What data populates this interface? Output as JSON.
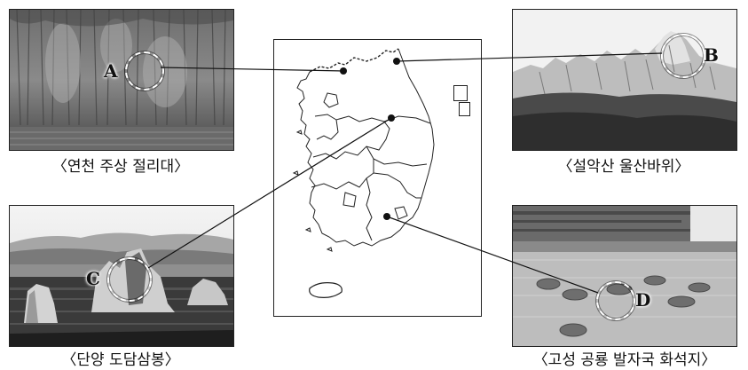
{
  "captions": {
    "yeoncheon": "〈연천 주상 절리대〉",
    "seoraksan": "〈설악산 울산바위〉",
    "danyang": "〈단양 도담삼봉〉",
    "goseong": "〈고성 공룡 발자국 화석지〉"
  },
  "markers": {
    "A": "A",
    "B": "B",
    "C": "C",
    "D": "D"
  }
}
